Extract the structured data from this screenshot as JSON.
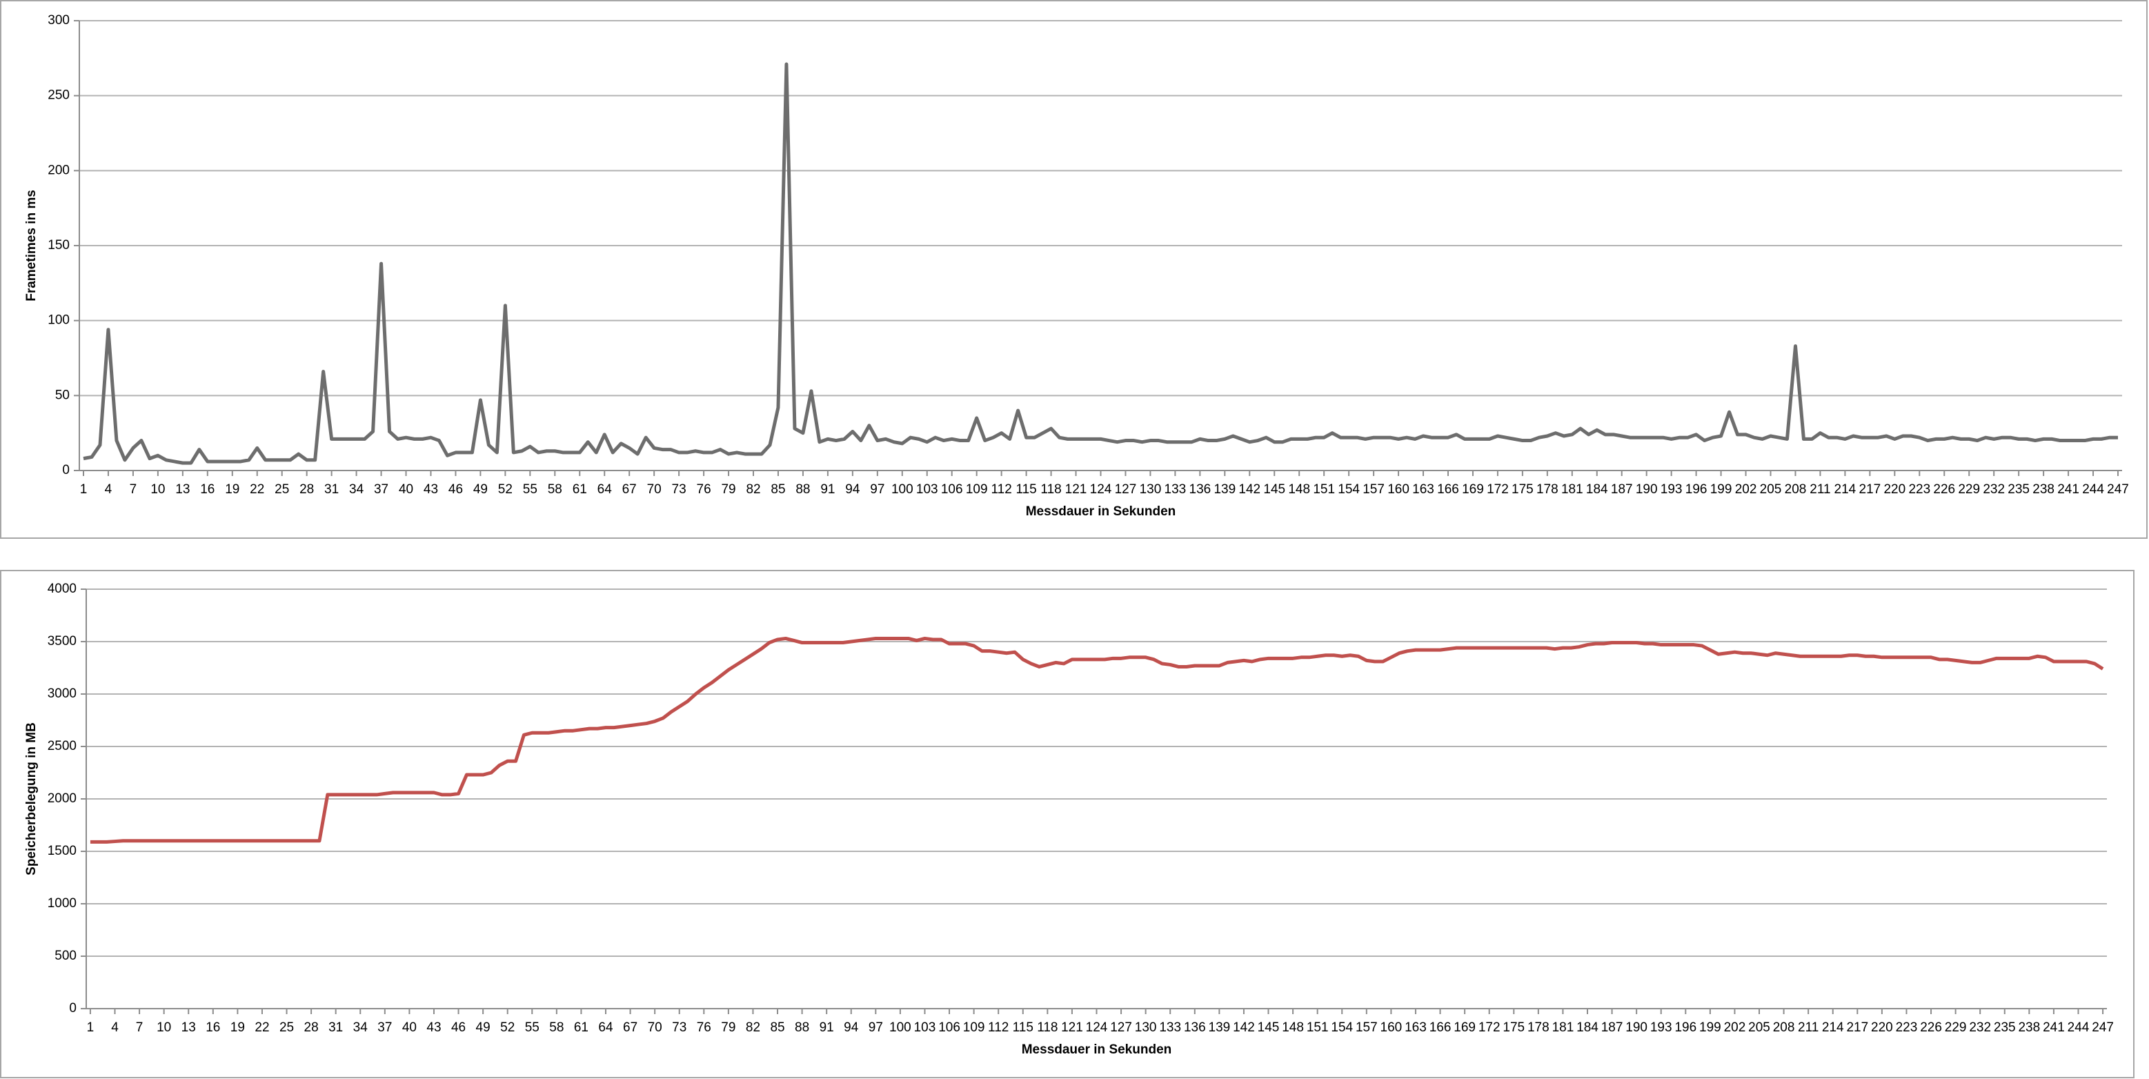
{
  "chart_data": [
    {
      "type": "line",
      "y_label": "Frametimes in ms",
      "x_label": "Messdauer in Sekunden",
      "x": [
        1,
        2,
        3,
        4,
        5,
        6,
        7,
        8,
        9,
        10,
        11,
        12,
        13,
        14,
        15,
        16,
        17,
        18,
        19,
        20,
        21,
        22,
        23,
        24,
        25,
        26,
        27,
        28,
        29,
        30,
        31,
        32,
        33,
        34,
        35,
        36,
        37,
        38,
        39,
        40,
        41,
        42,
        43,
        44,
        45,
        46,
        47,
        48,
        49,
        50,
        51,
        52,
        53,
        54,
        55,
        56,
        57,
        58,
        59,
        60,
        61,
        62,
        63,
        64,
        65,
        66,
        67,
        68,
        69,
        70,
        71,
        72,
        73,
        74,
        75,
        76,
        77,
        78,
        79,
        80,
        81,
        82,
        83,
        84,
        85,
        86,
        87,
        88,
        89,
        90,
        91,
        92,
        93,
        94,
        95,
        96,
        97,
        98,
        99,
        100,
        101,
        102,
        103,
        104,
        105,
        106,
        107,
        108,
        109,
        110,
        111,
        112,
        113,
        114,
        115,
        116,
        117,
        118,
        119,
        120,
        121,
        122,
        123,
        124,
        125,
        126,
        127,
        128,
        129,
        130,
        131,
        132,
        133,
        134,
        135,
        136,
        137,
        138,
        139,
        140,
        141,
        142,
        143,
        144,
        145,
        146,
        147,
        148,
        149,
        150,
        151,
        152,
        153,
        154,
        155,
        156,
        157,
        158,
        159,
        160,
        161,
        162,
        163,
        164,
        165,
        166,
        167,
        168,
        169,
        170,
        171,
        172,
        173,
        174,
        175,
        176,
        177,
        178,
        179,
        180,
        181,
        182,
        183,
        184,
        185,
        186,
        187,
        188,
        189,
        190,
        191,
        192,
        193,
        194,
        195,
        196,
        197,
        198,
        199,
        200,
        201,
        202,
        203,
        204,
        205,
        206,
        207,
        208,
        209,
        210,
        211,
        212,
        213,
        214,
        215,
        216,
        217,
        218,
        219,
        220,
        221,
        222,
        223,
        224,
        225,
        226,
        227,
        228,
        229,
        230,
        231,
        232,
        233,
        234,
        235,
        236,
        237,
        238,
        239,
        240,
        241,
        242,
        243,
        244,
        245,
        246,
        247
      ],
      "series": [
        {
          "color": "#6d6d6d",
          "values": [
            8,
            9,
            17,
            94,
            20,
            7,
            15,
            20,
            8,
            10,
            7,
            6,
            5,
            5,
            14,
            6,
            6,
            6,
            6,
            6,
            7,
            15,
            7,
            7,
            7,
            7,
            11,
            7,
            7,
            66,
            21,
            21,
            21,
            21,
            21,
            26,
            138,
            26,
            21,
            22,
            21,
            21,
            22,
            20,
            10,
            12,
            12,
            12,
            47,
            17,
            12,
            110,
            12,
            13,
            16,
            12,
            13,
            13,
            12,
            12,
            12,
            19,
            12,
            24,
            12,
            18,
            15,
            11,
            22,
            15,
            14,
            14,
            12,
            12,
            13,
            12,
            12,
            14,
            11,
            12,
            11,
            11,
            11,
            17,
            42,
            271,
            28,
            25,
            53,
            19,
            21,
            20,
            21,
            26,
            20,
            30,
            20,
            21,
            19,
            18,
            22,
            21,
            19,
            22,
            20,
            21,
            20,
            20,
            35,
            20,
            22,
            25,
            21,
            40,
            22,
            22,
            25,
            28,
            22,
            21,
            21,
            21,
            21,
            21,
            20,
            19,
            20,
            20,
            19,
            20,
            20,
            19,
            19,
            19,
            19,
            21,
            20,
            20,
            21,
            23,
            21,
            19,
            20,
            22,
            19,
            19,
            21,
            21,
            21,
            22,
            22,
            25,
            22,
            22,
            22,
            21,
            22,
            22,
            22,
            21,
            22,
            21,
            23,
            22,
            22,
            22,
            24,
            21,
            21,
            21,
            21,
            23,
            22,
            21,
            20,
            20,
            22,
            23,
            25,
            23,
            24,
            28,
            24,
            27,
            24,
            24,
            23,
            22,
            22,
            22,
            22,
            22,
            21,
            22,
            22,
            24,
            20,
            22,
            23,
            39,
            24,
            24,
            22,
            21,
            23,
            22,
            21,
            83,
            21,
            21,
            25,
            22,
            22,
            21,
            23,
            22,
            22,
            22,
            23,
            21,
            23,
            23,
            22,
            20,
            21,
            21,
            22,
            21,
            21,
            20,
            22,
            21,
            22,
            22,
            21,
            21,
            20,
            21,
            21,
            20,
            20,
            20,
            20,
            21,
            21,
            22,
            22
          ]
        }
      ],
      "xlim": [
        0.5,
        247.5
      ],
      "xticks": [
        1,
        4,
        7,
        10,
        13,
        16,
        19,
        22,
        25,
        28,
        31,
        34,
        37,
        40,
        43,
        46,
        49,
        52,
        55,
        58,
        61,
        64,
        67,
        70,
        73,
        76,
        79,
        82,
        85,
        88,
        91,
        94,
        97,
        100,
        103,
        106,
        109,
        112,
        115,
        118,
        121,
        124,
        127,
        130,
        133,
        136,
        139,
        142,
        145,
        148,
        151,
        154,
        157,
        160,
        163,
        166,
        169,
        172,
        175,
        178,
        181,
        184,
        187,
        190,
        193,
        196,
        199,
        202,
        205,
        208,
        211,
        214,
        217,
        220,
        223,
        226,
        229,
        232,
        235,
        238,
        241,
        244,
        247
      ],
      "ylim": [
        0,
        300
      ],
      "yticks": [
        0,
        50,
        100,
        150,
        200,
        250,
        300
      ],
      "grid": true
    },
    {
      "type": "line",
      "y_label": "Speicherbelegung in MB",
      "x_label": "Messdauer in Sekunden",
      "x": [
        1,
        2,
        3,
        4,
        5,
        6,
        7,
        8,
        9,
        10,
        11,
        12,
        13,
        14,
        15,
        16,
        17,
        18,
        19,
        20,
        21,
        22,
        23,
        24,
        25,
        26,
        27,
        28,
        29,
        30,
        31,
        32,
        33,
        34,
        35,
        36,
        37,
        38,
        39,
        40,
        41,
        42,
        43,
        44,
        45,
        46,
        47,
        48,
        49,
        50,
        51,
        52,
        53,
        54,
        55,
        56,
        57,
        58,
        59,
        60,
        61,
        62,
        63,
        64,
        65,
        66,
        67,
        68,
        69,
        70,
        71,
        72,
        73,
        74,
        75,
        76,
        77,
        78,
        79,
        80,
        81,
        82,
        83,
        84,
        85,
        86,
        87,
        88,
        89,
        90,
        91,
        92,
        93,
        94,
        95,
        96,
        97,
        98,
        99,
        100,
        101,
        102,
        103,
        104,
        105,
        106,
        107,
        108,
        109,
        110,
        111,
        112,
        113,
        114,
        115,
        116,
        117,
        118,
        119,
        120,
        121,
        122,
        123,
        124,
        125,
        126,
        127,
        128,
        129,
        130,
        131,
        132,
        133,
        134,
        135,
        136,
        137,
        138,
        139,
        140,
        141,
        142,
        143,
        144,
        145,
        146,
        147,
        148,
        149,
        150,
        151,
        152,
        153,
        154,
        155,
        156,
        157,
        158,
        159,
        160,
        161,
        162,
        163,
        164,
        165,
        166,
        167,
        168,
        169,
        170,
        171,
        172,
        173,
        174,
        175,
        176,
        177,
        178,
        179,
        180,
        181,
        182,
        183,
        184,
        185,
        186,
        187,
        188,
        189,
        190,
        191,
        192,
        193,
        194,
        195,
        196,
        197,
        198,
        199,
        200,
        201,
        202,
        203,
        204,
        205,
        206,
        207,
        208,
        209,
        210,
        211,
        212,
        213,
        214,
        215,
        216,
        217,
        218,
        219,
        220,
        221,
        222,
        223,
        224,
        225,
        226,
        227,
        228,
        229,
        230,
        231,
        232,
        233,
        234,
        235,
        236,
        237,
        238,
        239,
        240,
        241,
        242,
        243,
        244,
        245,
        246,
        247
      ],
      "series": [
        {
          "color": "#c0504d",
          "values": [
            1590,
            1590,
            1590,
            1595,
            1600,
            1600,
            1600,
            1600,
            1600,
            1600,
            1600,
            1600,
            1600,
            1600,
            1600,
            1600,
            1600,
            1600,
            1600,
            1600,
            1600,
            1600,
            1600,
            1600,
            1600,
            1600,
            1600,
            1600,
            1600,
            2040,
            2040,
            2040,
            2040,
            2040,
            2040,
            2040,
            2050,
            2060,
            2060,
            2060,
            2060,
            2060,
            2060,
            2040,
            2040,
            2050,
            2230,
            2230,
            2230,
            2250,
            2320,
            2360,
            2360,
            2610,
            2630,
            2630,
            2630,
            2640,
            2650,
            2650,
            2660,
            2670,
            2670,
            2680,
            2680,
            2690,
            2700,
            2710,
            2720,
            2740,
            2770,
            2830,
            2880,
            2930,
            3000,
            3060,
            3110,
            3170,
            3230,
            3280,
            3330,
            3380,
            3430,
            3490,
            3520,
            3530,
            3510,
            3490,
            3490,
            3490,
            3490,
            3490,
            3490,
            3500,
            3510,
            3520,
            3530,
            3530,
            3530,
            3530,
            3530,
            3510,
            3530,
            3520,
            3520,
            3480,
            3480,
            3480,
            3460,
            3410,
            3410,
            3400,
            3390,
            3400,
            3330,
            3290,
            3260,
            3280,
            3300,
            3290,
            3330,
            3330,
            3330,
            3330,
            3330,
            3340,
            3340,
            3350,
            3350,
            3350,
            3330,
            3290,
            3280,
            3260,
            3260,
            3270,
            3270,
            3270,
            3270,
            3300,
            3310,
            3320,
            3310,
            3330,
            3340,
            3340,
            3340,
            3340,
            3350,
            3350,
            3360,
            3370,
            3370,
            3360,
            3370,
            3360,
            3320,
            3310,
            3310,
            3350,
            3390,
            3410,
            3420,
            3420,
            3420,
            3420,
            3430,
            3440,
            3440,
            3440,
            3440,
            3440,
            3440,
            3440,
            3440,
            3440,
            3440,
            3440,
            3440,
            3430,
            3440,
            3440,
            3450,
            3470,
            3480,
            3480,
            3490,
            3490,
            3490,
            3490,
            3480,
            3480,
            3470,
            3470,
            3470,
            3470,
            3470,
            3460,
            3420,
            3380,
            3390,
            3400,
            3390,
            3390,
            3380,
            3370,
            3390,
            3380,
            3370,
            3360,
            3360,
            3360,
            3360,
            3360,
            3360,
            3370,
            3370,
            3360,
            3360,
            3350,
            3350,
            3350,
            3350,
            3350,
            3350,
            3350,
            3330,
            3330,
            3320,
            3310,
            3300,
            3300,
            3320,
            3340,
            3340,
            3340,
            3340,
            3340,
            3360,
            3350,
            3310,
            3310,
            3310,
            3310,
            3310,
            3290,
            3240
          ]
        }
      ],
      "xlim": [
        0.5,
        247.5
      ],
      "xticks": [
        1,
        4,
        7,
        10,
        13,
        16,
        19,
        22,
        25,
        28,
        31,
        34,
        37,
        40,
        43,
        46,
        49,
        52,
        55,
        58,
        61,
        64,
        67,
        70,
        73,
        76,
        79,
        82,
        85,
        88,
        91,
        94,
        97,
        100,
        103,
        106,
        109,
        112,
        115,
        118,
        121,
        124,
        127,
        130,
        133,
        136,
        139,
        142,
        145,
        148,
        151,
        154,
        157,
        160,
        163,
        166,
        169,
        172,
        175,
        178,
        181,
        184,
        187,
        190,
        193,
        196,
        199,
        202,
        205,
        208,
        211,
        214,
        217,
        220,
        223,
        226,
        229,
        232,
        235,
        238,
        241,
        244,
        247
      ],
      "ylim": [
        0,
        4000
      ],
      "yticks": [
        0,
        500,
        1000,
        1500,
        2000,
        2500,
        3000,
        3500,
        4000
      ],
      "grid": true
    }
  ]
}
